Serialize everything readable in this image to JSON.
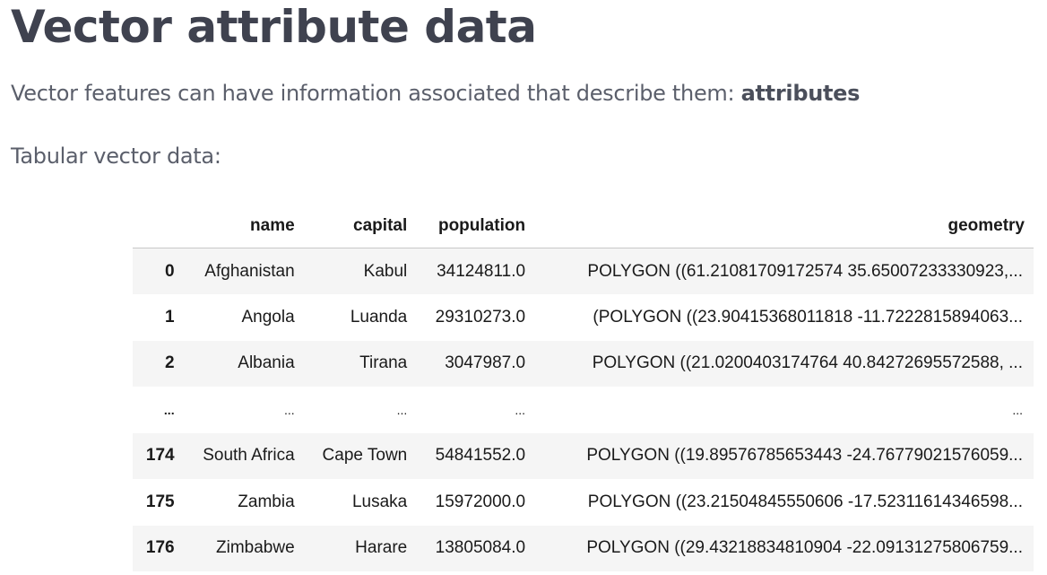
{
  "slide": {
    "title": "Vector attribute data",
    "paragraph1_text": "Vector features can have information associated that describe them: ",
    "paragraph1_bold": "attributes",
    "paragraph2": "Tabular vector data:"
  },
  "table": {
    "index_header": "",
    "columns": [
      "name",
      "capital",
      "population",
      "geometry"
    ],
    "rows": [
      {
        "index": "0",
        "name": "Afghanistan",
        "capital": "Kabul",
        "population": "34124811.0",
        "geometry": "POLYGON ((61.21081709172574 35.65007233330923,..."
      },
      {
        "index": "1",
        "name": "Angola",
        "capital": "Luanda",
        "population": "29310273.0",
        "geometry": "(POLYGON ((23.90415368011818 -11.7222815894063..."
      },
      {
        "index": "2",
        "name": "Albania",
        "capital": "Tirana",
        "population": "3047987.0",
        "geometry": "POLYGON ((21.0200403174764 40.84272695572588, ..."
      },
      {
        "index": "...",
        "name": "...",
        "capital": "...",
        "population": "...",
        "geometry": "..."
      },
      {
        "index": "174",
        "name": "South Africa",
        "capital": "Cape Town",
        "population": "54841552.0",
        "geometry": "POLYGON ((19.89576785653443 -24.76779021576059..."
      },
      {
        "index": "175",
        "name": "Zambia",
        "capital": "Lusaka",
        "population": "15972000.0",
        "geometry": "POLYGON ((23.21504845550606 -17.52311614346598..."
      },
      {
        "index": "176",
        "name": "Zimbabwe",
        "capital": "Harare",
        "population": "13805084.0",
        "geometry": "POLYGON ((29.43218834810904 -22.09131275806759..."
      }
    ]
  }
}
